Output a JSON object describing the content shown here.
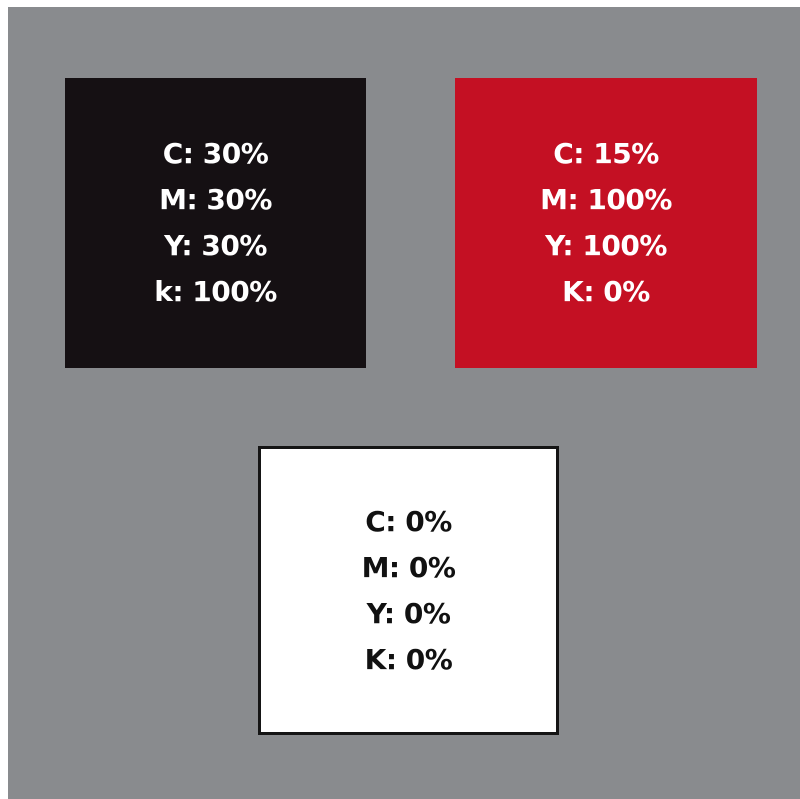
{
  "swatches": [
    {
      "name": "rich-black",
      "background": "#151013",
      "text_color": "#ffffff",
      "lines": [
        "C: 30%",
        "M: 30%",
        "Y: 30%",
        "k: 100%"
      ]
    },
    {
      "name": "red",
      "background": "#c41023",
      "text_color": "#ffffff",
      "lines": [
        "C: 15%",
        "M: 100%",
        "Y: 100%",
        "K: 0%"
      ]
    },
    {
      "name": "white",
      "background": "#ffffff",
      "text_color": "#111111",
      "border_color": "#151515",
      "lines": [
        "C: 0%",
        "M: 0%",
        "Y: 0%",
        "K: 0%"
      ]
    }
  ],
  "canvas_background": "#898b8e"
}
